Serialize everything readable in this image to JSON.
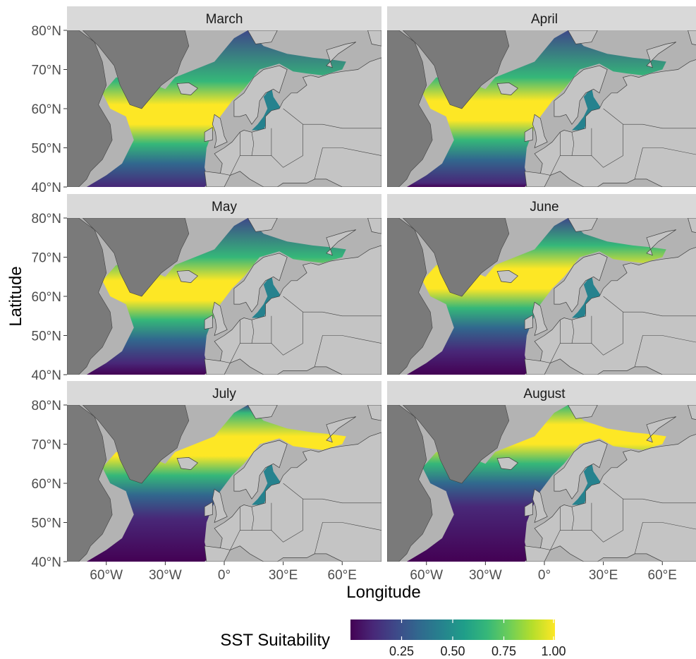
{
  "figure": {
    "x_axis_title": "Longitude",
    "y_axis_title": "Latitude",
    "legend": {
      "title": "SST Suitability",
      "range": [
        0.0,
        1.0
      ],
      "ticks": [
        {
          "value": 0.25,
          "label": "0.25"
        },
        {
          "value": 0.5,
          "label": "0.50"
        },
        {
          "value": 0.75,
          "label": "0.75"
        },
        {
          "value": 1.0,
          "label": "1.00"
        }
      ],
      "colormap": "viridis",
      "colors": [
        "#440154",
        "#482878",
        "#3e4989",
        "#31688e",
        "#26828e",
        "#1f9e89",
        "#35b779",
        "#6ece58",
        "#b5de2b",
        "#fde725"
      ],
      "placement": "bottom"
    },
    "lon_ticks": [
      {
        "value": -60,
        "label": "60°W"
      },
      {
        "value": -30,
        "label": "30°W"
      },
      {
        "value": 0,
        "label": "0°"
      },
      {
        "value": 30,
        "label": "30°E"
      },
      {
        "value": 60,
        "label": "60°E"
      }
    ],
    "lat_ticks": [
      {
        "value": 80,
        "label": "80°N"
      },
      {
        "value": 70,
        "label": "70°N"
      },
      {
        "value": 60,
        "label": "60°N"
      },
      {
        "value": 50,
        "label": "50°N"
      },
      {
        "value": 40,
        "label": "40°N"
      }
    ],
    "lon_range": [
      -80,
      80
    ],
    "lat_range": [
      40,
      80
    ],
    "colors": {
      "panel_bg": "#b3b3b3",
      "land": "#c4c4c4",
      "dark_land": "#7a7a7a",
      "strip_bg": "#d9d9d9",
      "border": "#404040"
    },
    "panels": [
      {
        "label": "March",
        "row": 0,
        "col": 0,
        "warm_band_lat": 58
      },
      {
        "label": "April",
        "row": 0,
        "col": 1,
        "warm_band_lat": 59
      },
      {
        "label": "May",
        "row": 1,
        "col": 0,
        "warm_band_lat": 61
      },
      {
        "label": "June",
        "row": 1,
        "col": 1,
        "warm_band_lat": 64
      },
      {
        "label": "July",
        "row": 2,
        "col": 0,
        "warm_band_lat": 69
      },
      {
        "label": "August",
        "row": 2,
        "col": 1,
        "warm_band_lat": 72
      }
    ]
  }
}
